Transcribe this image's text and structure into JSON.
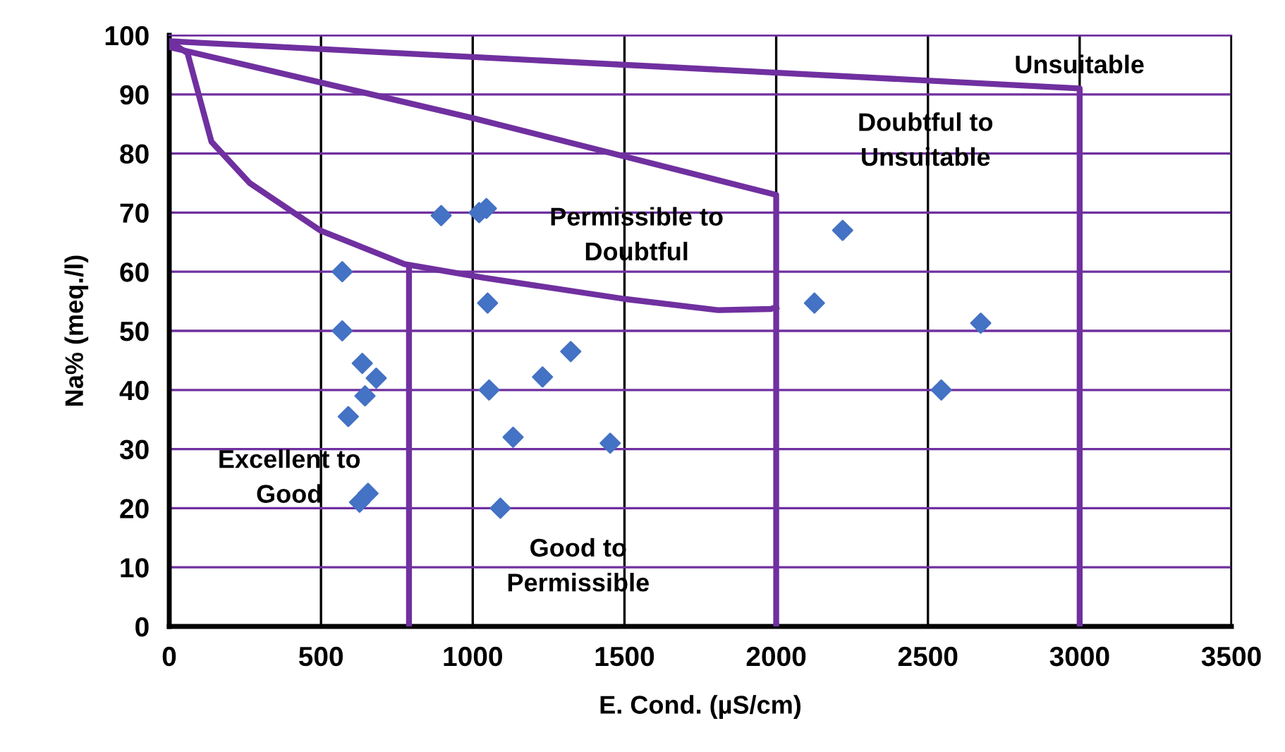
{
  "chart_data": {
    "type": "scatter",
    "xlabel": "E. Cond. (µS/cm)",
    "ylabel": "Na% (meq./l)",
    "xlim": [
      0,
      3500
    ],
    "xticks": [
      0,
      500,
      1000,
      1500,
      2000,
      2500,
      3000,
      3500
    ],
    "ylim": [
      0,
      100
    ],
    "yticks": [
      0,
      10,
      20,
      30,
      40,
      50,
      60,
      70,
      80,
      90,
      100
    ],
    "grid": true,
    "legend": false,
    "series": [
      {
        "marker": "diamond",
        "color": "#4472c4",
        "x": [
          570,
          570,
          636,
          682,
          645,
          590,
          655,
          627,
          896,
          1021,
          1045,
          1049,
          1054,
          1133,
          1230,
          1323,
          1453,
          1091,
          2126,
          2219,
          2544,
          2674
        ],
        "values": [
          60,
          50,
          44.5,
          42,
          39,
          35.5,
          22.5,
          21,
          69.5,
          70,
          70.7,
          54.7,
          40,
          32,
          42.2,
          46.5,
          31,
          20,
          54.7,
          67,
          40,
          51.3
        ]
      },
      {
        "type": "line",
        "marker": "none",
        "color": "#7030a0",
        "x": [
          0,
          3000,
          3000
        ],
        "values": [
          99,
          91,
          0
        ]
      },
      {
        "type": "line",
        "marker": "none",
        "color": "#7030a0",
        "x": [
          0,
          1000,
          2000,
          2000
        ],
        "values": [
          98,
          86,
          73,
          0
        ]
      },
      {
        "type": "line",
        "marker": "none",
        "color": "#7030a0",
        "x": [
          0,
          60,
          139,
          265,
          497,
          775,
          1035,
          1500,
          1810,
          1982,
          2000
        ],
        "values": [
          99,
          97,
          82,
          75,
          67,
          61.3,
          59,
          55.4,
          53.5,
          53.7,
          54
        ]
      },
      {
        "type": "line",
        "marker": "none",
        "color": "#7030a0",
        "x": [
          790,
          790
        ],
        "values": [
          61,
          0
        ]
      }
    ],
    "annotations": [
      "Unsuitable",
      "Doubtful to\nUnsuitable",
      "Permissible to\nDoubtful",
      "Excellent to\nGood",
      "Good to\nPermissible"
    ]
  }
}
